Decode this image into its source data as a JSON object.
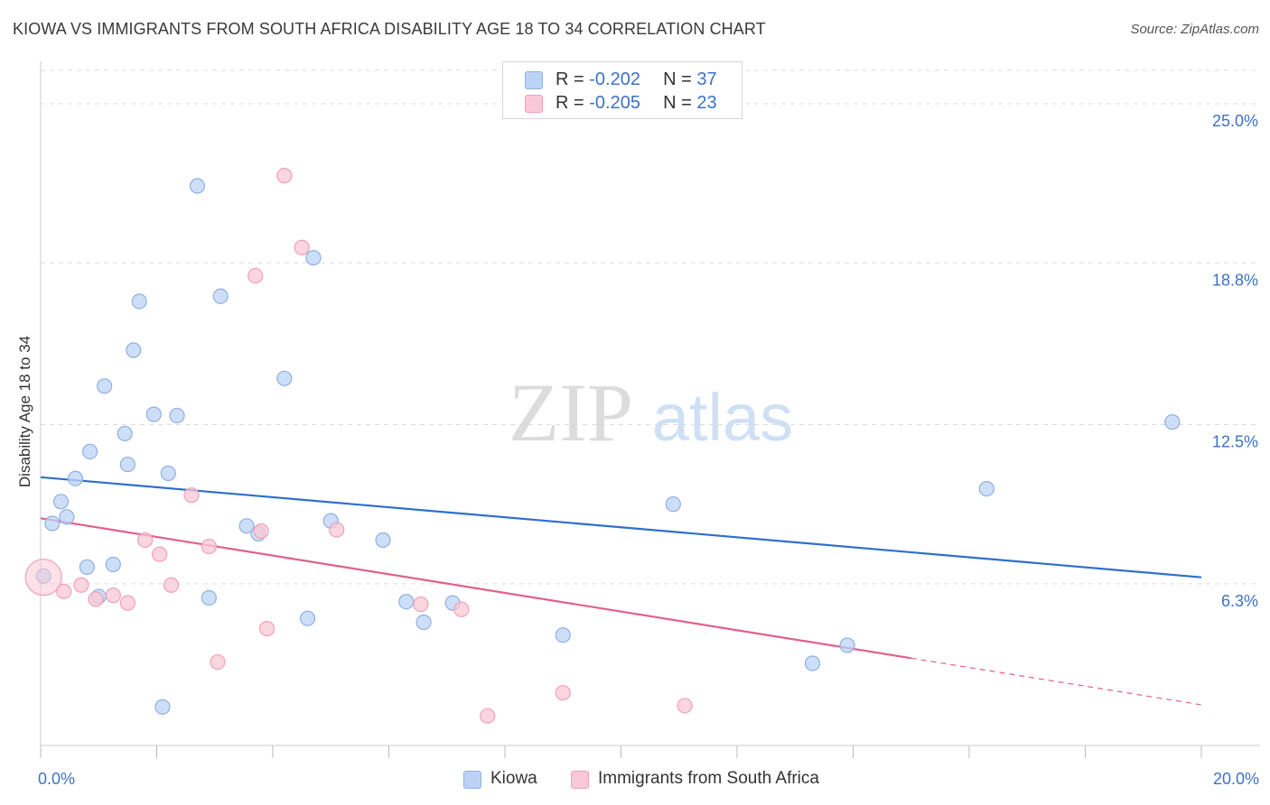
{
  "header": {
    "title": "KIOWA VS IMMIGRANTS FROM SOUTH AFRICA DISABILITY AGE 18 TO 34 CORRELATION CHART",
    "source": "Source: ZipAtlas.com"
  },
  "watermark": {
    "part1": "ZIP",
    "part2": "atlas"
  },
  "legend": {
    "kiowa": {
      "r_label": "R = ",
      "r_value": "-0.202",
      "n_label": "N = ",
      "n_value": "37"
    },
    "sa": {
      "r_label": "R = ",
      "r_value": "-0.205",
      "n_label": "N = ",
      "n_value": "23"
    }
  },
  "bottom_legend": {
    "kiowa": "Kiowa",
    "sa": "Immigrants from South Africa"
  },
  "colors": {
    "kiowa_fill": "#bcd3f5",
    "kiowa_stroke": "#8fb0e2",
    "kiowa_line": "#2e6fcc",
    "sa_fill": "#f9c8d6",
    "sa_stroke": "#efa0b8",
    "sa_line": "#e0608c",
    "tick_label": "#3d72c4",
    "grid": "#dcdcdc"
  },
  "chart_data": {
    "type": "scatter",
    "title": "KIOWA VS IMMIGRANTS FROM SOUTH AFRICA DISABILITY AGE 18 TO 34 CORRELATION CHART",
    "xlabel": "",
    "ylabel": "Disability Age 18 to 34",
    "xlim": [
      0,
      20
    ],
    "ylim": [
      0,
      26.3
    ],
    "x_tick_labels": [
      {
        "value": 0,
        "label": "0.0%"
      },
      {
        "value": 20,
        "label": "20.0%"
      }
    ],
    "y_ticks": [
      {
        "value": 6.3,
        "label": "6.3%"
      },
      {
        "value": 12.5,
        "label": "12.5%"
      },
      {
        "value": 18.8,
        "label": "18.8%"
      },
      {
        "value": 25.0,
        "label": "25.0%"
      }
    ],
    "grid": "horizontal dashed",
    "legend_position": "top-center",
    "series": [
      {
        "name": "Kiowa",
        "points": [
          [
            2.7,
            21.8
          ],
          [
            4.7,
            19.0
          ],
          [
            3.1,
            17.5
          ],
          [
            1.7,
            17.3
          ],
          [
            1.6,
            15.4
          ],
          [
            4.2,
            14.3
          ],
          [
            1.1,
            14.0
          ],
          [
            1.95,
            12.9
          ],
          [
            2.35,
            12.85
          ],
          [
            1.45,
            12.15
          ],
          [
            0.85,
            11.45
          ],
          [
            1.5,
            10.95
          ],
          [
            2.2,
            10.6
          ],
          [
            0.6,
            10.4
          ],
          [
            0.35,
            9.5
          ],
          [
            0.2,
            8.65
          ],
          [
            0.45,
            8.9
          ],
          [
            3.55,
            8.55
          ],
          [
            3.75,
            8.25
          ],
          [
            5.0,
            8.75
          ],
          [
            5.9,
            8.0
          ],
          [
            10.9,
            9.4
          ],
          [
            16.3,
            10.0
          ],
          [
            19.5,
            12.6
          ],
          [
            0.8,
            6.95
          ],
          [
            1.25,
            7.05
          ],
          [
            0.05,
            6.6
          ],
          [
            1.0,
            5.8
          ],
          [
            2.9,
            5.75
          ],
          [
            6.3,
            5.6
          ],
          [
            7.1,
            5.55
          ],
          [
            4.6,
            4.95
          ],
          [
            6.6,
            4.8
          ],
          [
            9.0,
            4.3
          ],
          [
            13.9,
            3.9
          ],
          [
            13.3,
            3.2
          ],
          [
            2.1,
            1.5
          ]
        ]
      },
      {
        "name": "Immigrants from South Africa",
        "points": [
          [
            4.2,
            22.2
          ],
          [
            4.5,
            19.4
          ],
          [
            3.7,
            18.3
          ],
          [
            2.6,
            9.75
          ],
          [
            1.8,
            8.0
          ],
          [
            2.9,
            7.75
          ],
          [
            2.05,
            7.45
          ],
          [
            3.8,
            8.35
          ],
          [
            5.1,
            8.4
          ],
          [
            0.05,
            6.55
          ],
          [
            0.7,
            6.25
          ],
          [
            0.4,
            6.0
          ],
          [
            2.25,
            6.25
          ],
          [
            1.25,
            5.85
          ],
          [
            0.95,
            5.7
          ],
          [
            1.5,
            5.55
          ],
          [
            6.55,
            5.5
          ],
          [
            7.25,
            5.3
          ],
          [
            3.9,
            4.55
          ],
          [
            3.05,
            3.25
          ],
          [
            9.0,
            2.05
          ],
          [
            11.1,
            1.55
          ],
          [
            7.7,
            1.15
          ]
        ]
      }
    ],
    "trend_lines": [
      {
        "series": "Kiowa",
        "x": [
          0,
          20
        ],
        "y": [
          10.45,
          6.55
        ]
      },
      {
        "series": "Immigrants from South Africa",
        "x": [
          0,
          15
        ],
        "y": [
          8.85,
          3.4
        ],
        "dashed_extension": [
          15,
          20
        ]
      }
    ]
  }
}
